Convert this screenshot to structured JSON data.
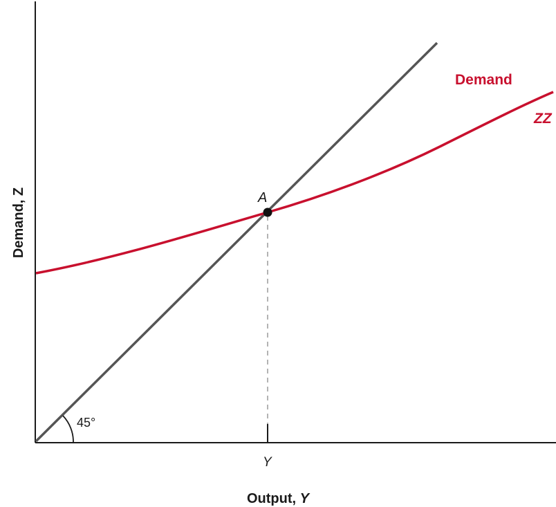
{
  "colors": {
    "background": "#ffffff",
    "axis": "#1a1a1a",
    "line_45": "#555555",
    "demand_curve": "#c8102e",
    "equilibrium_point": "#111111",
    "guide_line": "#9a9a9a"
  },
  "axes": {
    "x_title_prefix": "Output, ",
    "x_title_symbol": "Y",
    "y_title_prefix": "Demand, ",
    "y_title_symbol": "Z"
  },
  "labels": {
    "equilibrium_point": "A",
    "equilibrium_output_tick": "Y",
    "angle": "45°",
    "curve_name": "Demand",
    "curve_symbol": "ZZ"
  }
}
